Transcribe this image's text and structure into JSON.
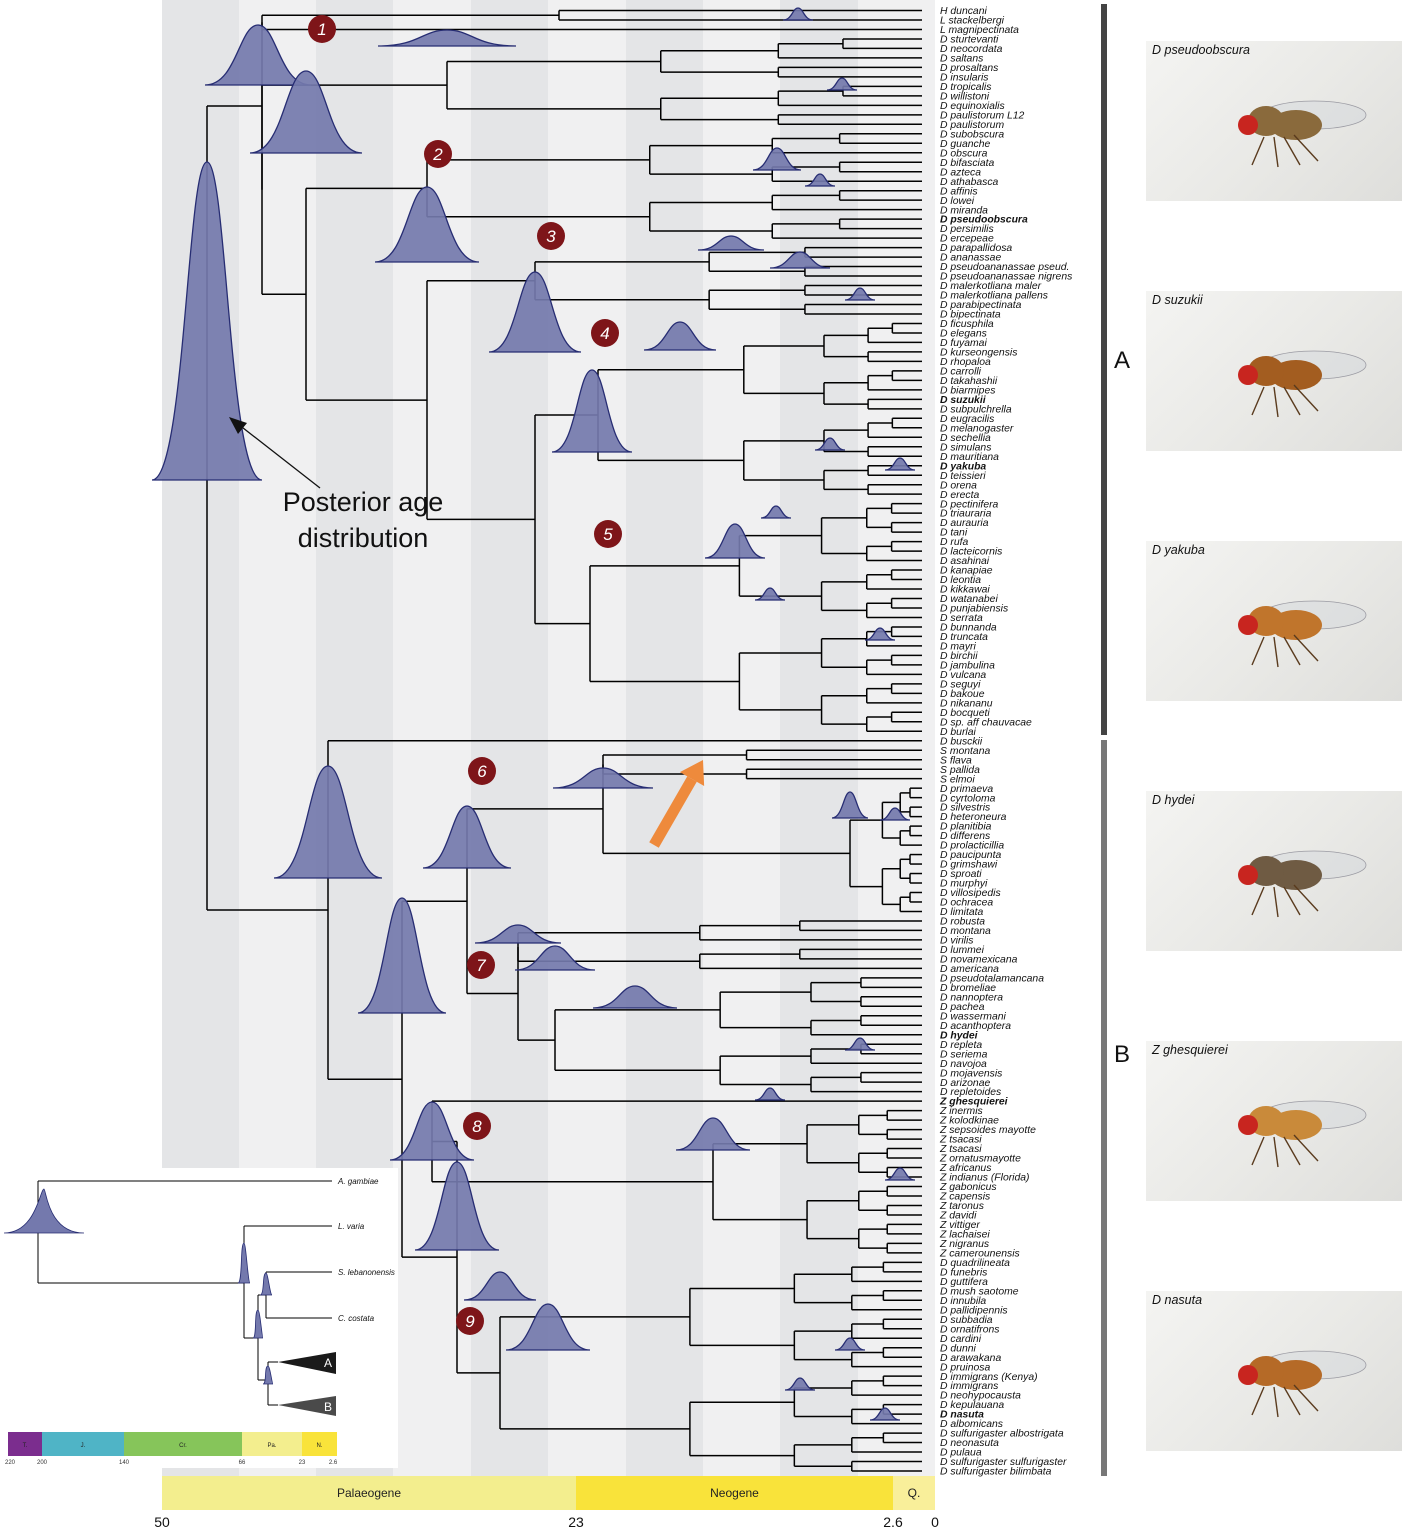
{
  "tips_a": [
    "H duncani",
    "L stackelbergi",
    "L magnipectinata",
    "D sturtevanti",
    "D neocordata",
    "D saltans",
    "D prosaltans",
    "D insularis",
    "D tropicalis",
    "D willistoni",
    "D equinoxialis",
    "D paulistorum L12",
    "D paulistorum",
    "D subobscura",
    "D guanche",
    "D obscura",
    "D bifasciata",
    "D azteca",
    "D athabasca",
    "D affinis",
    "D lowei",
    "D miranda",
    "D pseudoobscura",
    "D persimilis",
    "D ercepeae",
    "D parapallidosa",
    "D ananassae",
    "D pseudoananassae pseud.",
    "D pseudoananassae nigrens",
    "D malerkotliana maler",
    "D malerkotliana pallens",
    "D parabipectinata",
    "D bipectinata",
    "D ficusphila",
    "D elegans",
    "D fuyamai",
    "D kurseongensis",
    "D rhopaloa",
    "D carrolli",
    "D takahashii",
    "D biarmipes",
    "D suzukii",
    "D subpulchrella",
    "D eugracilis",
    "D melanogaster",
    "D sechellia",
    "D simulans",
    "D mauritiana",
    "D yakuba",
    "D teissieri",
    "D orena",
    "D erecta",
    "D pectinifera",
    "D triauraria",
    "D aurauria",
    "D tani",
    "D rufa",
    "D lacteicornis",
    "D asahinai",
    "D kanapiae",
    "D leontia",
    "D kikkawai",
    "D watanabei",
    "D punjabiensis",
    "D serrata",
    "D bunnanda",
    "D truncata",
    "D mayri",
    "D birchii",
    "D jambulina",
    "D vulcana",
    "D seguyi",
    "D bakoue",
    "D nikananu",
    "D bocqueti",
    "D sp. aff chauvacae",
    "D burlai",
    "D busckii"
  ],
  "tips_b": [
    "S montana",
    "S flava",
    "S pallida",
    "S elmoi",
    "D primaeva",
    "D cyrtoloma",
    "D silvestris",
    "D heteroneura",
    "D planitibia",
    "D differens",
    "D prolacticillia",
    "D paucipunta",
    "D grimshawi",
    "D sproati",
    "D murphyi",
    "D villosipedis",
    "D ochracea",
    "D limitata",
    "D robusta",
    "D montana",
    "D virilis",
    "D lummei",
    "D novamexicana",
    "D americana",
    "D pseudotalamancana",
    "D bromeliae",
    "D nannoptera",
    "D pachea",
    "D wassermani",
    "D acanthoptera",
    "D hydei",
    "D repleta",
    "D seriema",
    "D navojoa",
    "D mojavensis",
    "D arizonae",
    "D repletoides",
    "Z ghesquierei",
    "Z inermis",
    "Z kolodkinae",
    "Z sepsoides mayotte",
    "Z tsacasi",
    "Z tsacasi",
    "Z ornatusmayotte",
    "Z africanus",
    "Z indianus (Florida)",
    "Z gabonicus",
    "Z capensis",
    "Z taronus",
    "Z davidi",
    "Z vittiger",
    "Z lachaisei",
    "Z nigranus",
    "Z camerounensis",
    "D quadrilineata",
    "D funebris",
    "D guttifera",
    "D mush saotome",
    "D innubila",
    "D pallidipennis",
    "D subbadia",
    "D ornatifrons",
    "D cardini",
    "D dunni",
    "D arawakana",
    "D pruinosa",
    "D immigrans (Kenya)",
    "D immigrans",
    "D neohypocausta",
    "D kepulauana",
    "D nasuta",
    "D albomicans",
    "D sulfurigaster albostrigata",
    "D neonasuta",
    "D pulaua",
    "D sulfurigaster sulfurigaster",
    "D sulfurigaster bilimbata"
  ],
  "bold_tips": [
    "D pseudoobscura",
    "D suzukii",
    "D yakuba",
    "D hydei",
    "Z ghesquierei",
    "D nasuta"
  ],
  "node_labels": [
    "1",
    "2",
    "3",
    "4",
    "5",
    "6",
    "7",
    "8",
    "9"
  ],
  "annotation": {
    "line1": "Posterior age",
    "line2": "distribution"
  },
  "periods": [
    {
      "name": "Palaeogene",
      "color": "#f3ee8e"
    },
    {
      "name": "Neogene",
      "color": "#f9e33a"
    },
    {
      "name": "Q.",
      "color": "#f9ef9a"
    }
  ],
  "axis_ticks": [
    "50",
    "23",
    "2.6",
    "0"
  ],
  "clades": [
    "A",
    "B"
  ],
  "photos": [
    {
      "label": "D pseudoobscura"
    },
    {
      "label": "D suzukii"
    },
    {
      "label": "D yakuba"
    },
    {
      "label": "D hydei"
    },
    {
      "label": "Z ghesquierei"
    },
    {
      "label": "D nasuta"
    }
  ],
  "inset": {
    "tips": [
      "A. gambiae",
      "L. varia",
      "S. lebanonensis",
      "C. costata"
    ],
    "clades": [
      "A",
      "B"
    ],
    "eras": [
      {
        "name": "T.",
        "color": "#7b2d8e"
      },
      {
        "name": "J.",
        "color": "#4fb4c6"
      },
      {
        "name": "Cr.",
        "color": "#86c55a"
      },
      {
        "name": "Pa.",
        "color": "#f3ee8e"
      },
      {
        "name": "N.",
        "color": "#f9e33a"
      }
    ],
    "ticks": [
      "220",
      "200",
      "140",
      "66",
      "23",
      "2.6"
    ]
  },
  "colors": {
    "density_fill": "#7479ad",
    "density_stroke": "#272d73",
    "node_badge": "#7e1519",
    "arrow": "#ee8a3c",
    "bar": "#444444"
  }
}
